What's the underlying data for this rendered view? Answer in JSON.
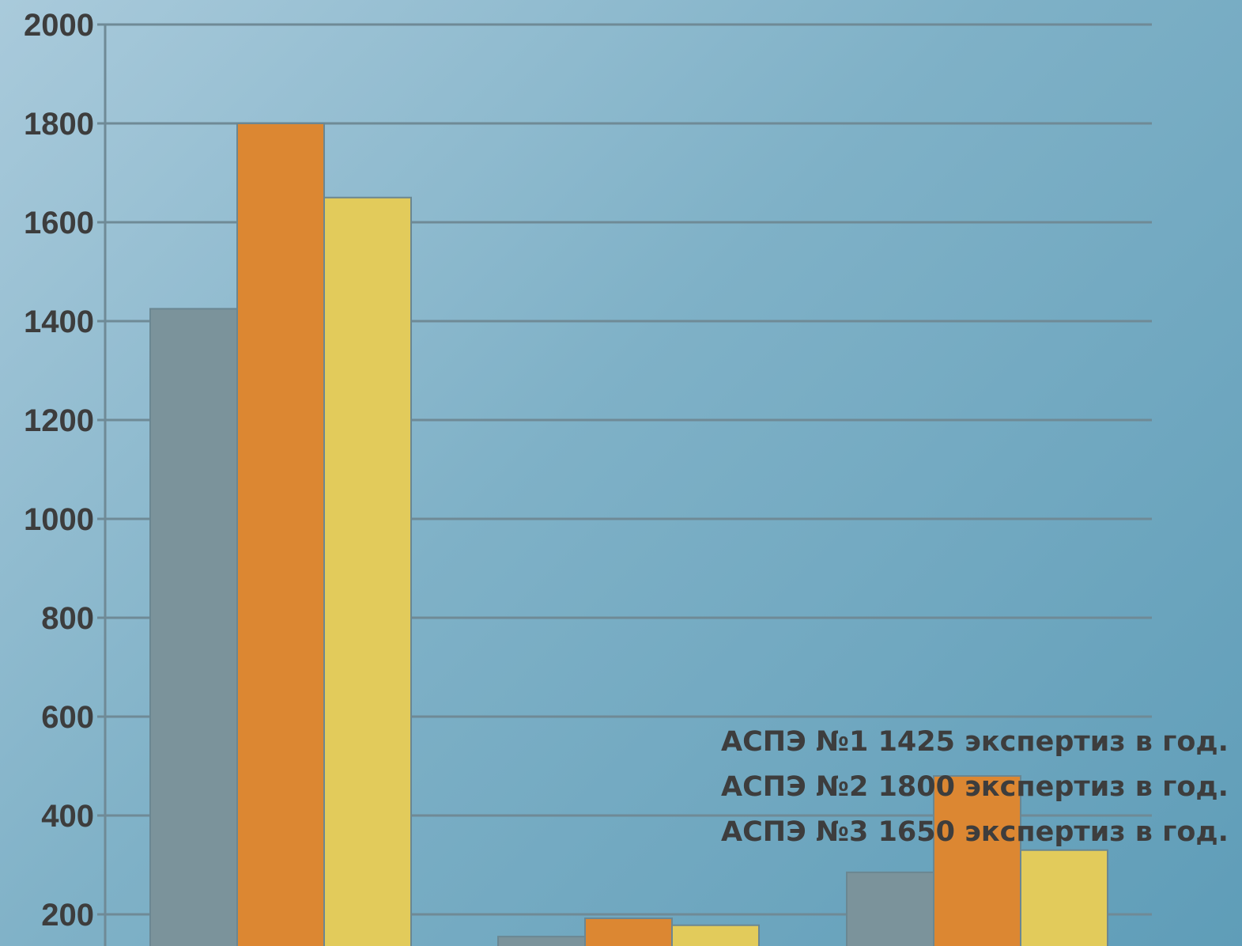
{
  "chart_data": {
    "type": "bar",
    "ylim": [
      0,
      2000
    ],
    "yticks": [
      "2000",
      "1800",
      "1600",
      "1400",
      "1200",
      "1000",
      "800",
      "600",
      "400",
      "200"
    ],
    "grid": true,
    "series": [
      {
        "color": "#7b939b",
        "values": [
          1425,
          155,
          285
        ]
      },
      {
        "color": "#dc8732",
        "values": [
          1800,
          192,
          480
        ]
      },
      {
        "color": "#e2cb5b",
        "values": [
          1650,
          178,
          330
        ]
      }
    ],
    "annotations": [
      "АСПЭ №1 1425 экспертиз в год.",
      "АСПЭ №2 1800 экспертиз в год.",
      "АСПЭ №3 1650 экспертиз в год."
    ]
  }
}
